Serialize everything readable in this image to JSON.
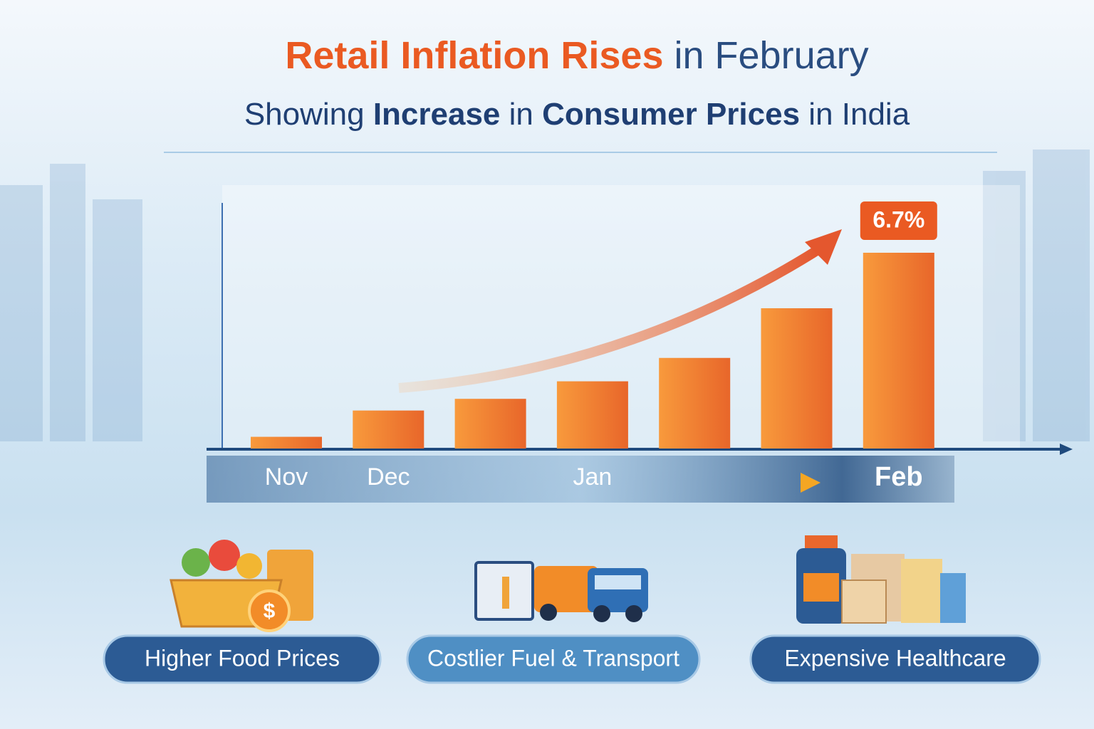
{
  "header": {
    "title": [
      "Retail Inflation Rises",
      "in February"
    ],
    "subtitle": [
      "Showing",
      "Increase",
      "in",
      "Consumer Prices",
      "in India"
    ]
  },
  "chart_data": {
    "type": "bar",
    "categories": [
      "Nov",
      "Dec",
      null,
      "Jan",
      null,
      null,
      "Feb"
    ],
    "values": [
      0.4,
      1.3,
      1.7,
      2.3,
      3.1,
      4.8,
      6.7
    ],
    "value_labels": [
      null,
      null,
      null,
      null,
      null,
      null,
      "6.7%"
    ],
    "color": "#f07a2a"
  },
  "factors": [
    "Higher Food Prices",
    "Costlier Fuel & Transport",
    "Expensive Healthcare"
  ]
}
